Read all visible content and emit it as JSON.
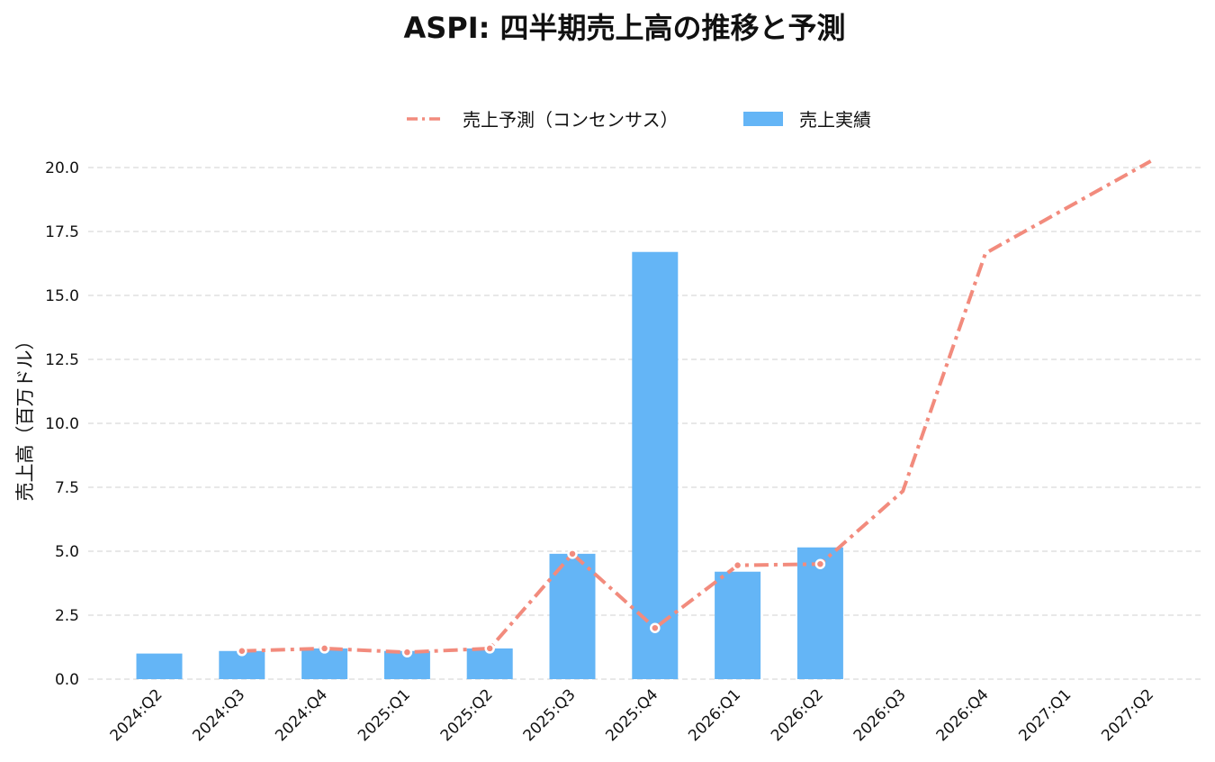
{
  "chart_data": {
    "type": "bar",
    "title": "ASPI: 四半期売上高の推移と予測",
    "ylabel": "売上高（百万ドル）",
    "xlabel": "",
    "ylim": [
      0,
      21.2
    ],
    "yticks": [
      "0.0",
      "2.5",
      "5.0",
      "7.5",
      "10.0",
      "12.5",
      "15.0",
      "17.5",
      "20.0"
    ],
    "ytick_values": [
      0,
      2.5,
      5,
      7.5,
      10,
      12.5,
      15,
      17.5,
      20
    ],
    "grid": true,
    "legend_position": "top-center",
    "categories": [
      "2024:Q2",
      "2024:Q3",
      "2024:Q4",
      "2025:Q1",
      "2025:Q2",
      "2025:Q3",
      "2025:Q4",
      "2026:Q1",
      "2026:Q2",
      "2026:Q3",
      "2026:Q4",
      "2027:Q1",
      "2027:Q2"
    ],
    "series": [
      {
        "name": "売上予測（コンセンサス）",
        "type": "line",
        "style": "dashdot",
        "color": "#f28b7d",
        "values": [
          null,
          1.1,
          1.2,
          1.05,
          1.2,
          4.9,
          2.0,
          4.45,
          4.5,
          7.35,
          16.65,
          18.45,
          20.25
        ]
      },
      {
        "name": "売上実績",
        "type": "bar",
        "color": "#64b5f6",
        "values": [
          1.0,
          1.1,
          1.2,
          1.1,
          1.2,
          4.9,
          16.7,
          4.2,
          5.15,
          null,
          null,
          null,
          null
        ]
      }
    ]
  }
}
